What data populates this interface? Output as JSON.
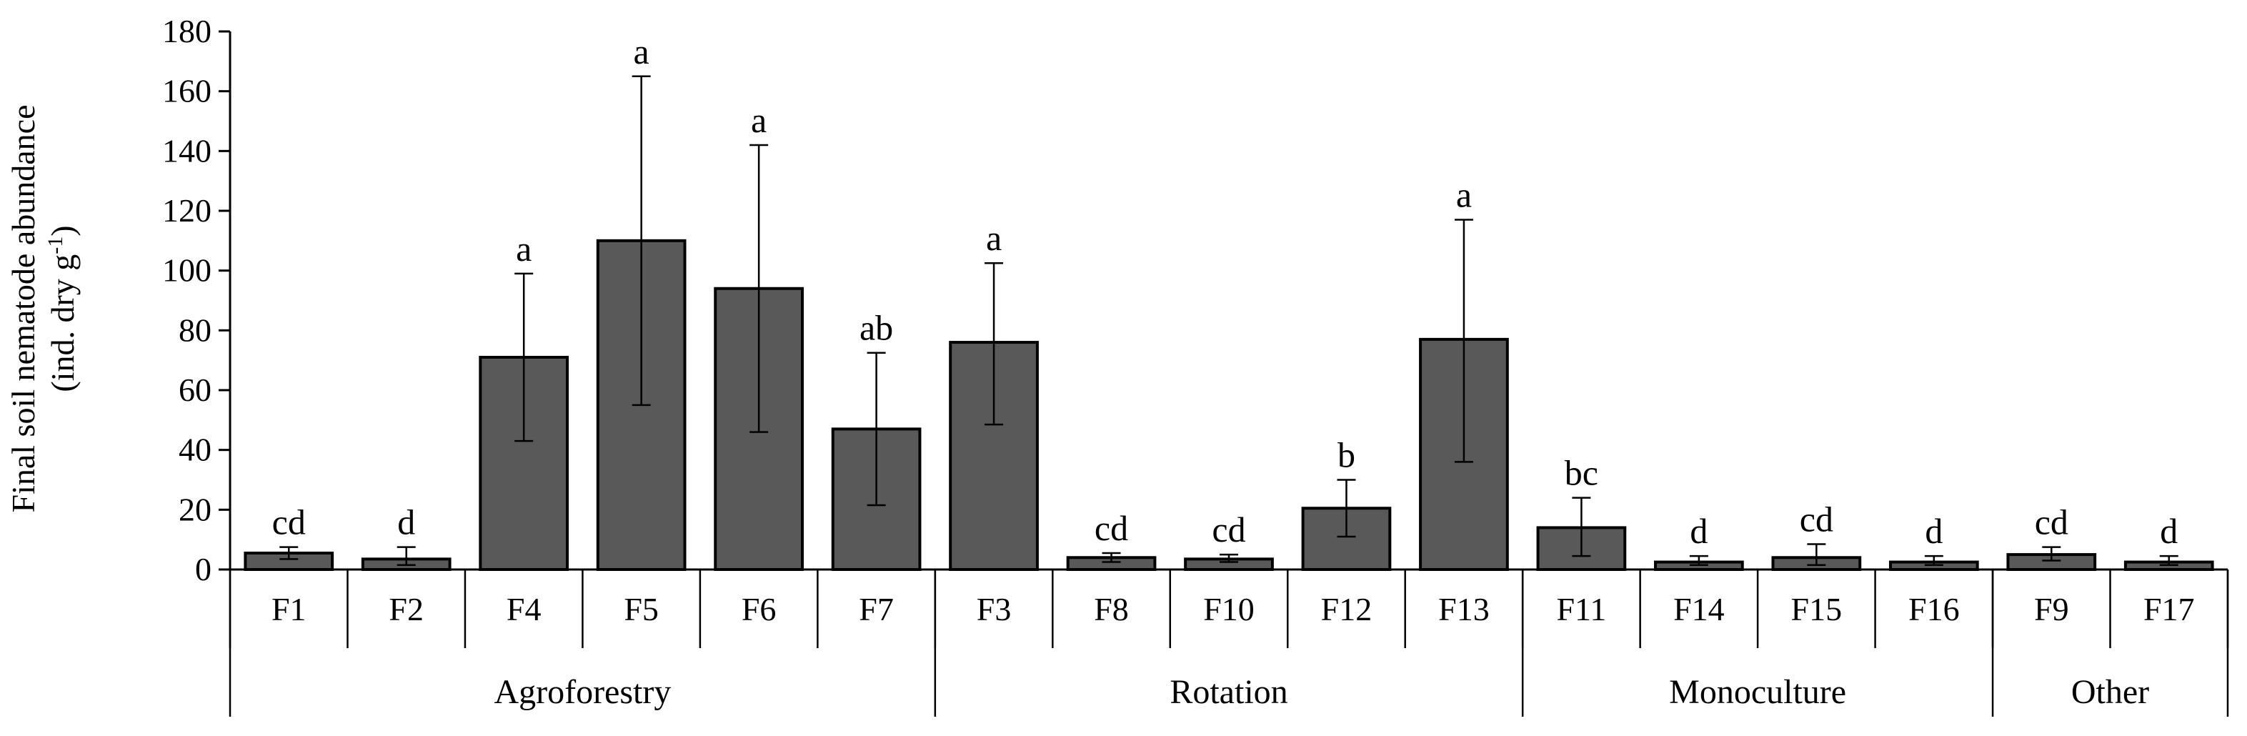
{
  "chart_data": {
    "type": "bar",
    "ylabel": {
      "line1": "Final soil nematode abundance",
      "line2_main": "(ind. dry g",
      "line2_sup": "-1",
      "line2_end": ")"
    },
    "ylim": [
      0,
      180
    ],
    "yticks": [
      0,
      20,
      40,
      60,
      80,
      100,
      120,
      140,
      160,
      180
    ],
    "grid": false,
    "bar_color": "#595959",
    "groups": [
      {
        "name": "Agroforestry",
        "categories": [
          "F1",
          "F2",
          "F4",
          "F5",
          "F6",
          "F7"
        ]
      },
      {
        "name": "Rotation",
        "categories": [
          "F3",
          "F8",
          "F10",
          "F12",
          "F13"
        ]
      },
      {
        "name": "Monoculture",
        "categories": [
          "F11",
          "F14",
          "F15",
          "F16"
        ]
      },
      {
        "name": "Other",
        "categories": [
          "F9",
          "F17"
        ]
      }
    ],
    "categories": [
      "F1",
      "F2",
      "F4",
      "F5",
      "F6",
      "F7",
      "F3",
      "F8",
      "F10",
      "F12",
      "F13",
      "F11",
      "F14",
      "F15",
      "F16",
      "F9",
      "F17"
    ],
    "values": [
      5.5,
      3.5,
      71,
      110,
      94,
      47,
      76,
      4,
      3.5,
      20.5,
      77,
      14,
      2.5,
      4,
      2.5,
      5,
      2.5
    ],
    "err_low": [
      3.5,
      1.5,
      43,
      55,
      46,
      21.5,
      48.5,
      2.5,
      2.5,
      11,
      36,
      4.5,
      1.5,
      1.5,
      1.5,
      3,
      1.5
    ],
    "err_high": [
      7.5,
      7.5,
      99,
      165,
      142,
      72.5,
      102.5,
      5.5,
      5,
      30,
      117,
      24,
      4.5,
      8.5,
      4.5,
      7.5,
      4.5
    ],
    "significance": [
      "cd",
      "d",
      "a",
      "a",
      "a",
      "ab",
      "a",
      "cd",
      "cd",
      "b",
      "a",
      "bc",
      "d",
      "cd",
      "d",
      "cd",
      "d"
    ]
  }
}
